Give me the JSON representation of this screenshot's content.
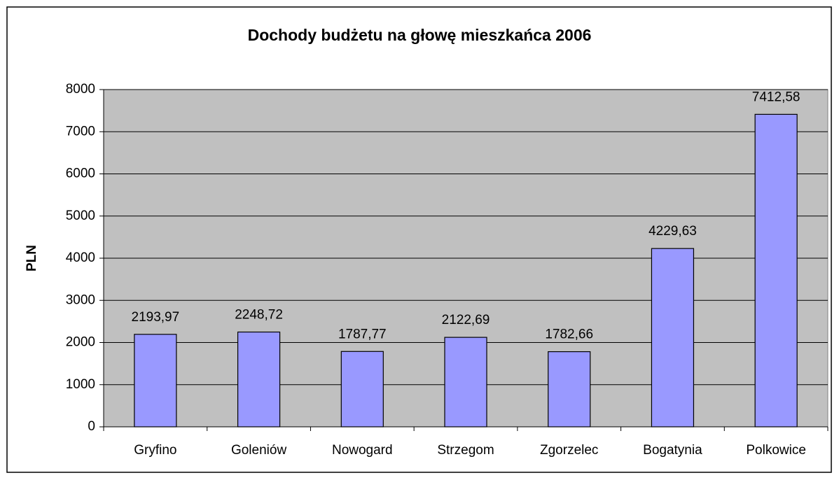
{
  "chart_data": {
    "type": "bar",
    "title": "Dochody budżetu na głowę mieszkańca 2006",
    "y_label": "PLN",
    "categories": [
      "Gryfino",
      "Goleniów",
      "Nowogard",
      "Strzegom",
      "Zgorzelec",
      "Bogatynia",
      "Polkowice"
    ],
    "values": [
      2193.97,
      2248.72,
      1787.77,
      2122.69,
      1782.66,
      4229.63,
      7412.58
    ],
    "value_labels": [
      "2193,97",
      "2248,72",
      "1787,77",
      "2122,69",
      "1782,66",
      "4229,63",
      "7412,58"
    ],
    "color": "#9999ff",
    "ylim": [
      0,
      8000
    ],
    "yticks": [
      0,
      1000,
      2000,
      3000,
      4000,
      5000,
      6000,
      7000,
      8000
    ],
    "grid": true
  }
}
